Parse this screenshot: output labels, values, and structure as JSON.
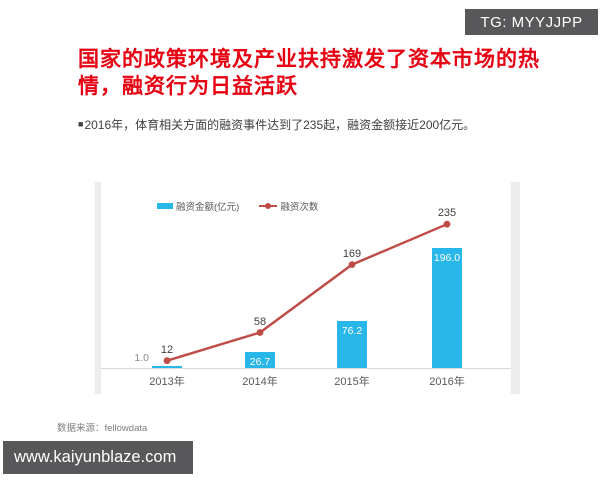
{
  "badge": {
    "text": "TG: MYYJJPP"
  },
  "title": {
    "line1": "国家的政策环境及产业扶持激发了资本市场的热",
    "line2": "情，融资行为日益活跃"
  },
  "bullet": {
    "marker": "■",
    "text": "2016年，体育相关方面的融资事件达到了235起，融资金额接近200亿元。"
  },
  "colors": {
    "title_red": "#e60012",
    "bar_cyan": "#29b6e8",
    "line_red": "#bf4b47",
    "badge_gray": "#58585a"
  },
  "chart_data": {
    "type": "combo",
    "categories": [
      "2013年",
      "2014年",
      "2015年",
      "2016年"
    ],
    "series": [
      {
        "name": "融资金额(亿元)",
        "type": "bar",
        "color": "#29b6e8",
        "values": [
          1.0,
          26.7,
          76.2,
          196.0
        ],
        "labels": [
          "1.0",
          "26.7",
          "76.2",
          "196.0"
        ]
      },
      {
        "name": "融资次数",
        "type": "line",
        "color": "#bf4b47",
        "values": [
          12,
          58,
          169,
          235
        ],
        "labels": [
          "12",
          "58",
          "169",
          "235"
        ]
      }
    ],
    "legend_position": "top-left",
    "grid": false,
    "value_axis_hidden": true,
    "ylim": [
      0,
      310
    ]
  },
  "source": {
    "text": "数据来源：fellowdata"
  },
  "watermark": {
    "text": "www.kaiyunblaze.com"
  }
}
